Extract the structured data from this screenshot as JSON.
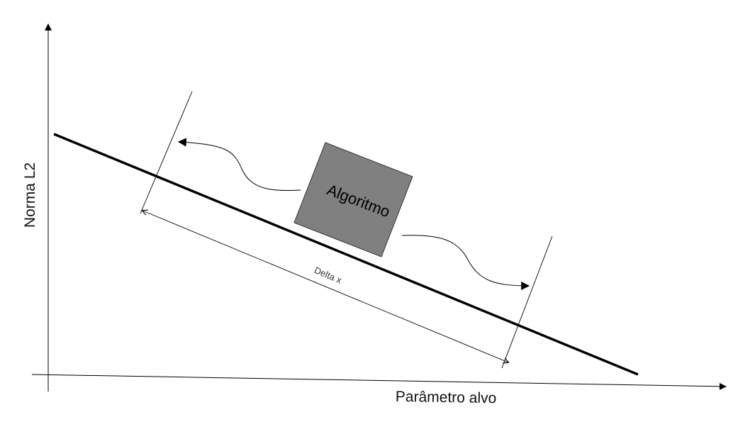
{
  "diagram": {
    "x_axis_label": "Parâmetro alvo",
    "y_axis_label": "Norma L2",
    "box_label": "Algoritmo",
    "interval_label": "Delta x",
    "colors": {
      "line": "#000000",
      "box_fill": "#808080",
      "box_stroke": "#333333",
      "text": "#111111"
    }
  }
}
